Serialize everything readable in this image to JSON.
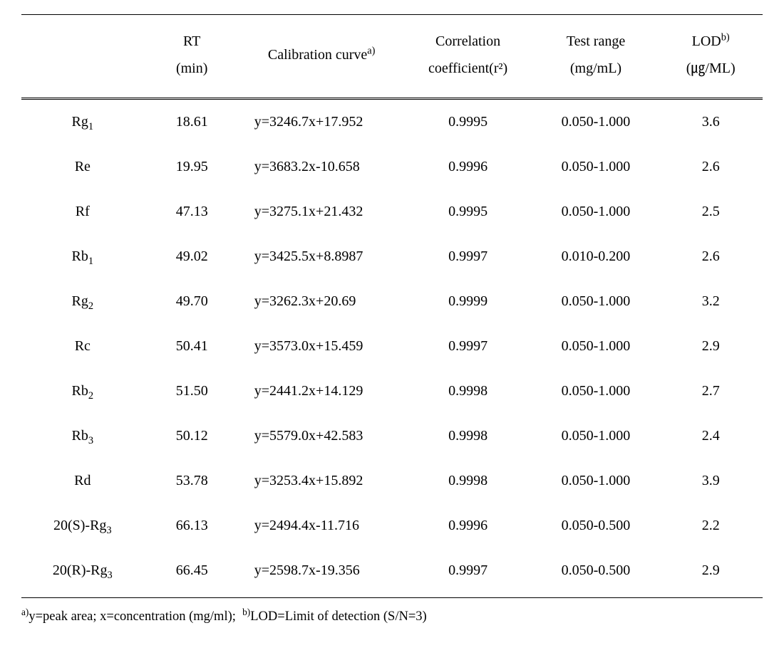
{
  "headers": {
    "name": "",
    "rt": "RT\n(min)",
    "curve_label": "Calibration curve",
    "curve_sup": "a)",
    "corr": "Correlation\ncoefficient(r²)",
    "range": "Test range\n(mg/mL)",
    "lod_label": "LOD",
    "lod_sup": "b)",
    "lod_unit": "(㎍/ML)"
  },
  "rows": [
    {
      "name": "Rg",
      "name_sub": "1",
      "rt": "18.61",
      "curve": "y=3246.7x+17.952",
      "corr": "0.9995",
      "range": "0.050-1.000",
      "lod": "3.6"
    },
    {
      "name": "Re",
      "name_sub": "",
      "rt": "19.95",
      "curve": "y=3683.2x-10.658",
      "corr": "0.9996",
      "range": "0.050-1.000",
      "lod": "2.6"
    },
    {
      "name": "Rf",
      "name_sub": "",
      "rt": "47.13",
      "curve": "y=3275.1x+21.432",
      "corr": "0.9995",
      "range": "0.050-1.000",
      "lod": "2.5"
    },
    {
      "name": "Rb",
      "name_sub": "1",
      "rt": "49.02",
      "curve": "y=3425.5x+8.8987",
      "corr": "0.9997",
      "range": "0.010-0.200",
      "lod": "2.6"
    },
    {
      "name": "Rg",
      "name_sub": "2",
      "rt": "49.70",
      "curve": "y=3262.3x+20.69",
      "corr": "0.9999",
      "range": "0.050-1.000",
      "lod": "3.2"
    },
    {
      "name": "Rc",
      "name_sub": "",
      "rt": "50.41",
      "curve": "y=3573.0x+15.459",
      "corr": "0.9997",
      "range": "0.050-1.000",
      "lod": "2.9"
    },
    {
      "name": "Rb",
      "name_sub": "2",
      "rt": "51.50",
      "curve": "y=2441.2x+14.129",
      "corr": "0.9998",
      "range": "0.050-1.000",
      "lod": "2.7"
    },
    {
      "name": "Rb",
      "name_sub": "3",
      "rt": "50.12",
      "curve": "y=5579.0x+42.583",
      "corr": "0.9998",
      "range": "0.050-1.000",
      "lod": "2.4"
    },
    {
      "name": "Rd",
      "name_sub": "",
      "rt": "53.78",
      "curve": "y=3253.4x+15.892",
      "corr": "0.9998",
      "range": "0.050-1.000",
      "lod": "3.9"
    },
    {
      "name": "20(S)-Rg",
      "name_sub": "3",
      "rt": "66.13",
      "curve": "y=2494.4x-11.716",
      "corr": "0.9996",
      "range": "0.050-0.500",
      "lod": "2.2"
    },
    {
      "name": "20(R)-Rg",
      "name_sub": "3",
      "rt": "66.45",
      "curve": "y=2598.7x-19.356",
      "corr": "0.9997",
      "range": "0.050-0.500",
      "lod": "2.9"
    }
  ],
  "footnote": {
    "a_sup": "a)",
    "a_text": "y=peak area; x=concentration (mg/ml);",
    "b_sup": "b)",
    "b_text": "LOD=Limit of detection (S/N=3)"
  }
}
